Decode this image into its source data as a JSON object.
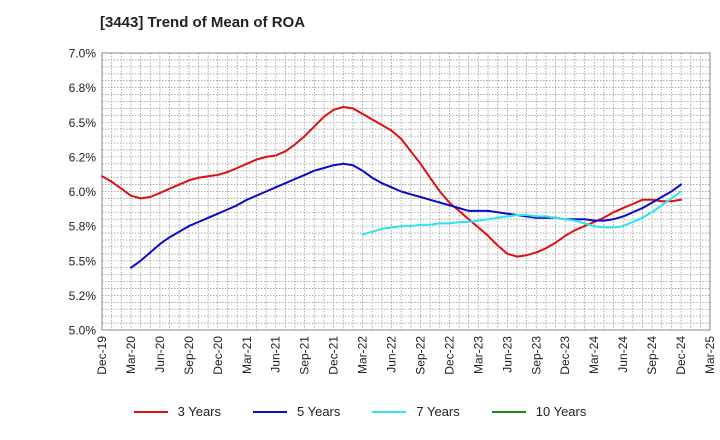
{
  "chart_data": {
    "type": "line",
    "title": "[3443]  Trend of Mean of ROA",
    "xlabel": "",
    "ylabel": "",
    "ylim": [
      5.0,
      7.0
    ],
    "yticks": [
      5.0,
      5.25,
      5.5,
      5.75,
      6.0,
      6.25,
      6.5,
      6.75,
      7.0
    ],
    "ytick_labels": [
      "5.0%",
      "5.2%",
      "5.5%",
      "5.8%",
      "6.0%",
      "6.2%",
      "6.5%",
      "6.8%",
      "7.0%"
    ],
    "xticks": [
      "Dec-19",
      "Mar-20",
      "Jun-20",
      "Sep-20",
      "Dec-20",
      "Mar-21",
      "Jun-21",
      "Sep-21",
      "Dec-21",
      "Mar-22",
      "Jun-22",
      "Sep-22",
      "Dec-22",
      "Mar-23",
      "Jun-23",
      "Sep-23",
      "Dec-23",
      "Mar-24",
      "Jun-24",
      "Sep-24",
      "Dec-24",
      "Mar-25"
    ],
    "grid": true,
    "legend_position": "bottom",
    "series": [
      {
        "name": "3 Years",
        "color": "#e01010",
        "x": [
          "Dec-19",
          "Jan-20",
          "Feb-20",
          "Mar-20",
          "Apr-20",
          "May-20",
          "Jun-20",
          "Jul-20",
          "Aug-20",
          "Sep-20",
          "Oct-20",
          "Nov-20",
          "Dec-20",
          "Jan-21",
          "Feb-21",
          "Mar-21",
          "Apr-21",
          "May-21",
          "Jun-21",
          "Jul-21",
          "Aug-21",
          "Sep-21",
          "Oct-21",
          "Nov-21",
          "Dec-21",
          "Jan-22",
          "Feb-22",
          "Mar-22",
          "Apr-22",
          "May-22",
          "Jun-22",
          "Jul-22",
          "Aug-22",
          "Sep-22",
          "Oct-22",
          "Nov-22",
          "Dec-22",
          "Jan-23",
          "Feb-23",
          "Mar-23",
          "Apr-23",
          "May-23",
          "Jun-23",
          "Jul-23",
          "Aug-23",
          "Sep-23",
          "Oct-23",
          "Nov-23",
          "Dec-23",
          "Jan-24",
          "Feb-24",
          "Mar-24",
          "Apr-24",
          "May-24",
          "Jun-24",
          "Jul-24",
          "Aug-24",
          "Sep-24",
          "Oct-24",
          "Nov-24",
          "Dec-24"
        ],
        "values": [
          6.11,
          6.07,
          6.02,
          5.97,
          5.95,
          5.96,
          5.99,
          6.02,
          6.05,
          6.08,
          6.1,
          6.11,
          6.12,
          6.14,
          6.17,
          6.2,
          6.23,
          6.25,
          6.26,
          6.29,
          6.34,
          6.4,
          6.47,
          6.54,
          6.59,
          6.61,
          6.6,
          6.56,
          6.52,
          6.48,
          6.44,
          6.38,
          6.29,
          6.2,
          6.1,
          6.0,
          5.92,
          5.86,
          5.8,
          5.74,
          5.68,
          5.61,
          5.55,
          5.53,
          5.54,
          5.56,
          5.59,
          5.63,
          5.68,
          5.72,
          5.75,
          5.78,
          5.81,
          5.85,
          5.88,
          5.91,
          5.94,
          5.94,
          5.93,
          5.93,
          5.94
        ]
      },
      {
        "name": "5 Years",
        "color": "#0b0bc8",
        "x": [
          "Mar-20",
          "Apr-20",
          "May-20",
          "Jun-20",
          "Jul-20",
          "Aug-20",
          "Sep-20",
          "Oct-20",
          "Nov-20",
          "Dec-20",
          "Jan-21",
          "Feb-21",
          "Mar-21",
          "Apr-21",
          "May-21",
          "Jun-21",
          "Jul-21",
          "Aug-21",
          "Sep-21",
          "Oct-21",
          "Nov-21",
          "Dec-21",
          "Jan-22",
          "Feb-22",
          "Mar-22",
          "Apr-22",
          "May-22",
          "Jun-22",
          "Jul-22",
          "Aug-22",
          "Sep-22",
          "Oct-22",
          "Nov-22",
          "Dec-22",
          "Jan-23",
          "Feb-23",
          "Mar-23",
          "Apr-23",
          "May-23",
          "Jun-23",
          "Jul-23",
          "Aug-23",
          "Sep-23",
          "Oct-23",
          "Nov-23",
          "Dec-23",
          "Jan-24",
          "Feb-24",
          "Mar-24",
          "Apr-24",
          "May-24",
          "Jun-24",
          "Jul-24",
          "Aug-24",
          "Sep-24",
          "Oct-24",
          "Nov-24",
          "Dec-24"
        ],
        "values": [
          5.45,
          5.5,
          5.56,
          5.62,
          5.67,
          5.71,
          5.75,
          5.78,
          5.81,
          5.84,
          5.87,
          5.9,
          5.94,
          5.97,
          6.0,
          6.03,
          6.06,
          6.09,
          6.12,
          6.15,
          6.17,
          6.19,
          6.2,
          6.19,
          6.15,
          6.1,
          6.06,
          6.03,
          6.0,
          5.98,
          5.96,
          5.94,
          5.92,
          5.9,
          5.88,
          5.86,
          5.86,
          5.86,
          5.85,
          5.84,
          5.83,
          5.82,
          5.81,
          5.81,
          5.81,
          5.8,
          5.8,
          5.8,
          5.79,
          5.79,
          5.8,
          5.82,
          5.85,
          5.88,
          5.92,
          5.96,
          6.0,
          6.05
        ]
      },
      {
        "name": "7 Years",
        "color": "#30e4ec",
        "x": [
          "Mar-22",
          "Apr-22",
          "May-22",
          "Jun-22",
          "Jul-22",
          "Aug-22",
          "Sep-22",
          "Oct-22",
          "Nov-22",
          "Dec-22",
          "Jan-23",
          "Feb-23",
          "Mar-23",
          "Apr-23",
          "May-23",
          "Jun-23",
          "Jul-23",
          "Aug-23",
          "Sep-23",
          "Oct-23",
          "Nov-23",
          "Dec-23",
          "Jan-24",
          "Feb-24",
          "Mar-24",
          "Apr-24",
          "May-24",
          "Jun-24",
          "Jul-24",
          "Aug-24",
          "Sep-24",
          "Oct-24",
          "Nov-24",
          "Dec-24"
        ],
        "values": [
          5.69,
          5.71,
          5.73,
          5.74,
          5.75,
          5.75,
          5.76,
          5.76,
          5.77,
          5.77,
          5.78,
          5.78,
          5.79,
          5.8,
          5.81,
          5.82,
          5.83,
          5.83,
          5.82,
          5.82,
          5.81,
          5.8,
          5.79,
          5.77,
          5.75,
          5.74,
          5.74,
          5.75,
          5.78,
          5.81,
          5.85,
          5.9,
          5.95,
          6.0
        ]
      },
      {
        "name": "10 Years",
        "color": "#1a8a1a",
        "x": [],
        "values": []
      }
    ]
  }
}
